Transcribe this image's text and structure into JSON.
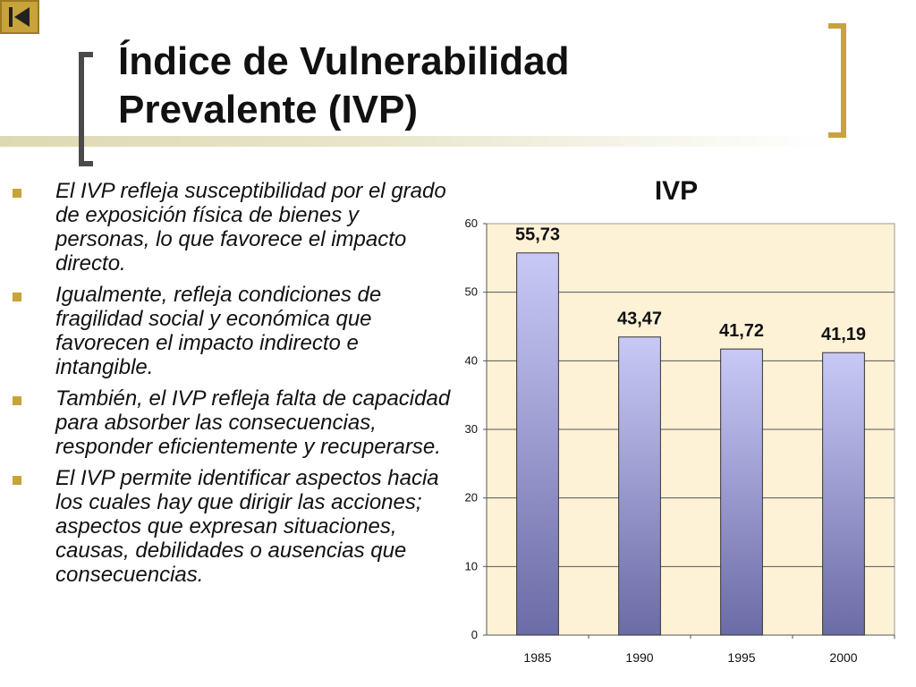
{
  "slide": {
    "title_line1": "Índice de Vulnerabilidad",
    "title_line2": "Prevalente (IVP)"
  },
  "nav": {
    "back_icon": "skip-back-icon"
  },
  "bullets": [
    "El IVP refleja susceptibilidad por el grado de exposición física de bienes y personas, lo que favorece el impacto directo.",
    "Igualmente, refleja condiciones de fragilidad social y económica que favorecen el impacto indirecto e intangible.",
    "También, el IVP refleja falta de capacidad para absorber las consecuencias, responder eficientemente y recuperarse.",
    "El IVP permite identificar aspectos hacia los cuales hay que dirigir las acciones; aspectos que expresan situaciones, causas, debilidades o ausencias que consecuencias."
  ],
  "colors": {
    "accent": "#c8a23a",
    "plot_background": "#fdf2d6",
    "bar_top": "#c9c9f7",
    "bar_bottom": "#6b6ba6"
  },
  "chart_data": {
    "type": "bar",
    "title": "IVP",
    "categories": [
      "1985",
      "1990",
      "1995",
      "2000"
    ],
    "values": [
      55.73,
      43.47,
      41.72,
      41.19
    ],
    "data_labels": [
      "55,73",
      "43,47",
      "41,72",
      "41,19"
    ],
    "yticks": [
      "0",
      "10",
      "20",
      "30",
      "40",
      "50",
      "60"
    ],
    "ylim": [
      0,
      60
    ],
    "grid": true,
    "legend": "none"
  }
}
